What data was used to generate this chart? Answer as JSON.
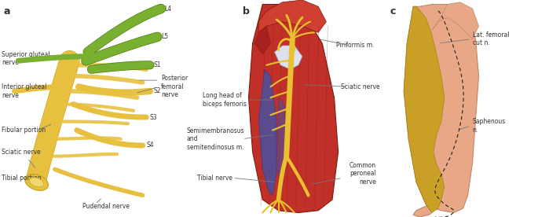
{
  "panel_a": {
    "label": "a",
    "green_color": "#7ab030",
    "green_dark": "#4a8010",
    "yellow_color": "#e8c040",
    "yellow_light": "#f0d060",
    "yellow_dark": "#c8a820"
  },
  "panel_b": {
    "label": "b",
    "muscle_red": "#c03028",
    "muscle_mid": "#a02820",
    "muscle_dark": "#801810",
    "muscle_light": "#d04030",
    "nerve_yellow": "#e8c030",
    "white_area": "#dde0ee",
    "blue_area": "#4850a0"
  },
  "panel_c": {
    "label": "c",
    "skin_color": "#e8a888",
    "skin_dark": "#c08868",
    "yellow_nerve": "#c8a020",
    "yellow_nerve_edge": "#a08010",
    "dashed_color": "#222222"
  },
  "bg_color": "#ffffff",
  "text_color": "#333333",
  "line_color": "#777777",
  "font_size": 5.5
}
